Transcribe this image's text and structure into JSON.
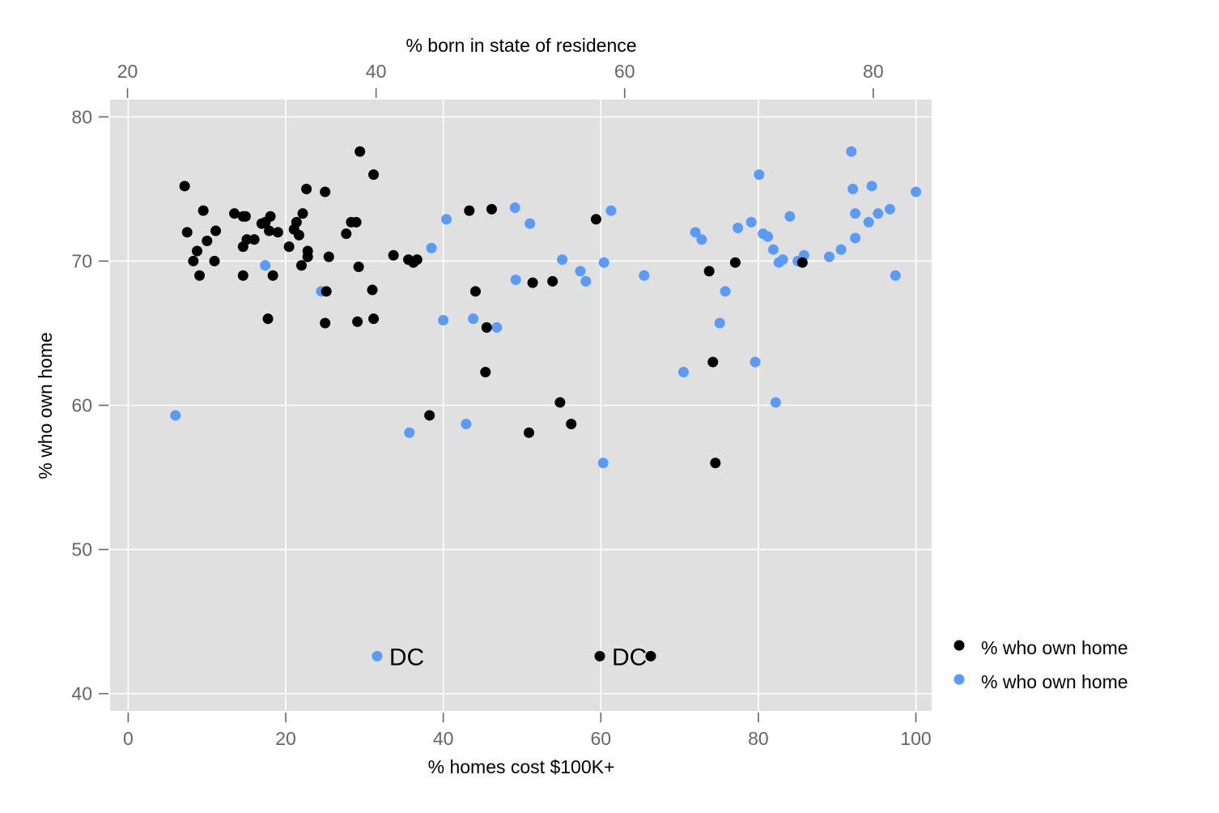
{
  "chart_data": {
    "type": "scatter",
    "title": "",
    "xlabel": "% homes cost $100K+",
    "x2label": "% born in state of residence",
    "ylabel": "% who own home",
    "xlim": [
      -2.3,
      102
    ],
    "x2lim": [
      18.6,
      84.7
    ],
    "ylim": [
      38.8,
      81.2
    ],
    "x_ticks": [
      0,
      20,
      40,
      60,
      80,
      100
    ],
    "x2_ticks": [
      20,
      40,
      60,
      80
    ],
    "y_ticks": [
      40,
      50,
      60,
      70,
      80
    ],
    "grid": true,
    "legend_position": "right-bottom",
    "colors": {
      "panel": "#e0e0e0",
      "grid": "#ffffff",
      "black_series": "#000000",
      "blue_series": "#5b9bf8",
      "tick": "#666666"
    },
    "series": [
      {
        "name": "% who own home",
        "axis": "x2",
        "color": "#000000",
        "x": [
          58.0,
          54.2,
          34.0,
          39.8,
          52.3,
          74.3,
          25.3,
          39.7,
          67.3,
          54.8,
          44.3,
          47.5,
          49.3,
          31.3,
          25.8,
          27.1,
          34.4,
          29.5,
          30.8,
          57.7,
          52.6,
          28.6,
          29.3,
          42.6,
          43.3,
          33.6,
          36.0,
          26.1,
          38.5,
          38.6,
          25.6,
          24.6,
          39.8,
          41.4,
          29.6,
          31.1,
          30.2,
          33.8,
          48.9,
          33.0,
          35.9,
          29.3,
          37.6,
          34.5,
          38.7,
          35.9,
          29.3,
          31.7,
          38.0,
          26.4,
          34.1,
          33.4,
          48.0,
          32.1,
          43.0,
          24.8,
          31.5,
          34.5,
          48.8,
          67.1,
          68.9,
          38.4,
          62.1,
          55.7,
          36.2,
          66.8,
          27.0,
          31.4
        ],
        "y": [
          42.6,
          68.6,
          69.7,
          76.0,
          58.1,
          69.9,
          70.0,
          68.0,
          56.0,
          60.2,
          59.3,
          73.5,
          73.6,
          66.0,
          69.0,
          72.1,
          75.0,
          73.1,
          72.6,
          72.9,
          68.5,
          73.3,
          73.1,
          70.1,
          70.1,
          72.7,
          67.9,
          73.5,
          65.8,
          69.6,
          70.7,
          75.2,
          66.0,
          70.4,
          71.5,
          72.7,
          71.5,
          71.8,
          65.4,
          71.0,
          65.7,
          69.0,
          71.9,
          70.7,
          77.6,
          74.8,
          71.0,
          69.0,
          72.7,
          71.4,
          73.3,
          72.2,
          67.9,
          72.0,
          69.9,
          72.0,
          73.1,
          70.3,
          62.3,
          63.0,
          69.9,
          72.7,
          42.6,
          58.7,
          70.3,
          69.3,
          70.0,
          72.1
        ]
      },
      {
        "name": "% who own home",
        "axis": "x",
        "color": "#5b9bf8",
        "x": [
          31.6,
          6.0,
          17.4,
          24.5,
          35.7,
          42.9,
          38.5,
          40.0,
          43.8,
          46.8,
          40.4,
          49.1,
          49.2,
          51.0,
          55.1,
          57.4,
          58.1,
          60.3,
          61.3,
          60.4,
          65.5,
          70.5,
          72.0,
          72.8,
          75.1,
          75.8,
          77.4,
          79.1,
          79.6,
          80.1,
          80.6,
          81.2,
          81.9,
          82.2,
          82.6,
          83.1,
          84.0,
          85.0,
          85.8,
          89.0,
          90.5,
          91.8,
          92.0,
          92.3,
          92.3,
          94.0,
          94.4,
          95.2,
          96.7,
          97.4,
          100.0
        ],
        "y": [
          42.6,
          59.3,
          69.7,
          67.9,
          58.1,
          58.7,
          70.9,
          65.9,
          66.0,
          65.4,
          72.9,
          73.7,
          68.7,
          72.6,
          70.1,
          69.3,
          68.6,
          56.0,
          73.5,
          69.9,
          69.0,
          62.3,
          72.0,
          71.5,
          65.7,
          67.9,
          72.3,
          72.7,
          63.0,
          76.0,
          71.9,
          71.7,
          70.8,
          60.2,
          69.9,
          70.1,
          73.1,
          70.0,
          70.4,
          70.3,
          70.8,
          77.6,
          75.0,
          73.3,
          71.6,
          72.7,
          75.2,
          73.3,
          73.6,
          69.0,
          74.8
        ]
      }
    ],
    "annotations": [
      {
        "text": "DC",
        "series": 1,
        "x": 31.6,
        "y": 42.6
      },
      {
        "text": "DC",
        "series": 0,
        "x": 58.0,
        "y": 42.6
      }
    ]
  }
}
